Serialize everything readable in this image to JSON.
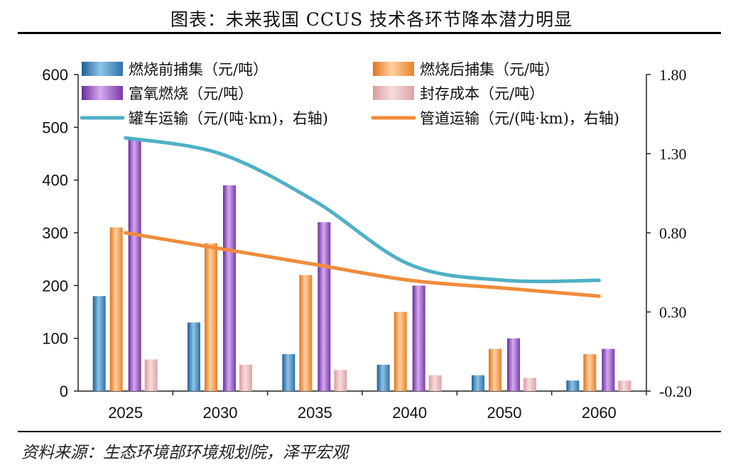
{
  "title": "图表：未来我国 CCUS 技术各环节降本潜力明显",
  "source": "资料来源：生态环境部环境规划院，泽平宏观",
  "colors": {
    "pre_combustion": "#4a90c4",
    "post_combustion": "#f59a45",
    "oxy_fuel": "#9b5fc8",
    "storage": "#e8b4b6",
    "tanker": "#4fb0c6",
    "pipeline": "#f08c3c"
  },
  "chart_data": {
    "type": "bar",
    "categories": [
      "2025",
      "2030",
      "2035",
      "2040",
      "2050",
      "2060"
    ],
    "series": [
      {
        "name": "燃烧前捕集（元/吨）",
        "axis": "left",
        "type": "bar",
        "color_key": "pre_combustion",
        "values": [
          180,
          130,
          70,
          50,
          30,
          20
        ]
      },
      {
        "name": "燃烧后捕集（元/吨）",
        "axis": "left",
        "type": "bar",
        "color_key": "post_combustion",
        "values": [
          310,
          280,
          220,
          150,
          80,
          70
        ]
      },
      {
        "name": "富氧燃烧（元/吨）",
        "axis": "left",
        "type": "bar",
        "color_key": "oxy_fuel",
        "values": [
          480,
          390,
          320,
          200,
          100,
          80
        ]
      },
      {
        "name": "封存成本（元/吨）",
        "axis": "left",
        "type": "bar",
        "color_key": "storage",
        "values": [
          60,
          50,
          40,
          30,
          25,
          20
        ]
      },
      {
        "name": "罐车运输（元/(吨·km)，右轴)",
        "axis": "right",
        "type": "line",
        "color_key": "tanker",
        "values": [
          1.4,
          1.3,
          1.0,
          0.6,
          0.5,
          0.5
        ]
      },
      {
        "name": "管道运输（元/(吨·km)，右轴)",
        "axis": "right",
        "type": "line",
        "color_key": "pipeline",
        "values": [
          0.8,
          0.7,
          0.6,
          0.5,
          0.45,
          0.4
        ]
      }
    ],
    "left_axis": {
      "min": 0,
      "max": 600,
      "ticks": [
        "0",
        "100",
        "200",
        "300",
        "400",
        "500",
        "600"
      ]
    },
    "right_axis": {
      "min": -0.2,
      "max": 1.8,
      "ticks": [
        "-0.20",
        "0.30",
        "0.80",
        "1.30",
        "1.80"
      ]
    },
    "legend_position": "top",
    "grid": false
  }
}
